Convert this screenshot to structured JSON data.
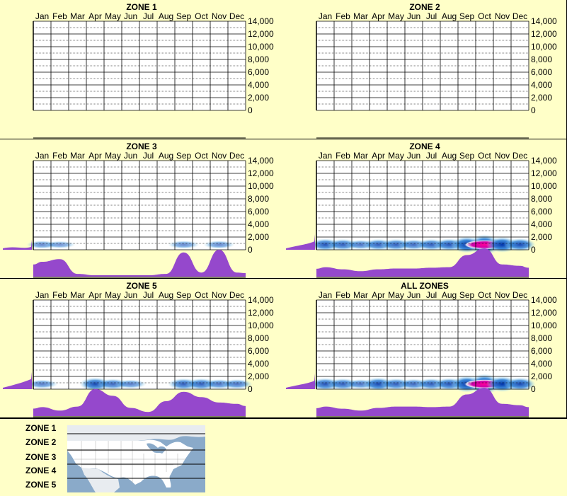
{
  "chart_data": [
    {
      "type": "heatmap",
      "title": "ZONE 1",
      "categories": [
        "Jan",
        "Feb",
        "Mar",
        "Apr",
        "May",
        "Jun",
        "Jul",
        "Aug",
        "Sep",
        "Oct",
        "Nov",
        "Dec"
      ],
      "yticks": [
        "14,000",
        "12,000",
        "10,000",
        "8,000",
        "6,000",
        "4,000",
        "2,000",
        "0"
      ],
      "ylim": [
        0,
        14000
      ],
      "hot": [],
      "monthly": [],
      "elev_lead": 0
    },
    {
      "type": "heatmap",
      "title": "ZONE 2",
      "categories": [
        "Jan",
        "Feb",
        "Mar",
        "Apr",
        "May",
        "Jun",
        "Jul",
        "Aug",
        "Sep",
        "Oct",
        "Nov",
        "Dec"
      ],
      "yticks": [
        "14,000",
        "12,000",
        "10,000",
        "8,000",
        "6,000",
        "4,000",
        "2,000",
        "0"
      ],
      "ylim": [
        0,
        14000
      ],
      "hot": [],
      "monthly": [],
      "elev_lead": 0
    },
    {
      "type": "heatmap",
      "title": "ZONE 3",
      "categories": [
        "Jan",
        "Feb",
        "Mar",
        "Apr",
        "May",
        "Jun",
        "Jul",
        "Aug",
        "Sep",
        "Oct",
        "Nov",
        "Dec"
      ],
      "yticks": [
        "14,000",
        "12,000",
        "10,000",
        "8,000",
        "6,000",
        "4,000",
        "2,000",
        "0"
      ],
      "ylim": [
        0,
        14000
      ],
      "hot": [
        {
          "m": 0.5,
          "i": 0.25
        },
        {
          "m": 1.5,
          "i": 0.2
        },
        {
          "m": 8.5,
          "i": 0.25
        },
        {
          "m": 10.5,
          "i": 0.25
        }
      ],
      "monthly": [
        0.5,
        0.6,
        0.05,
        0.0,
        0.0,
        0.0,
        0.0,
        0.05,
        0.85,
        0.1,
        0.95,
        0.1
      ],
      "elev_lead": 0.25
    },
    {
      "type": "heatmap",
      "title": "ZONE 4",
      "categories": [
        "Jan",
        "Feb",
        "Mar",
        "Apr",
        "May",
        "Jun",
        "Jul",
        "Aug",
        "Sep",
        "Oct",
        "Nov",
        "Dec"
      ],
      "yticks": [
        "14,000",
        "12,000",
        "10,000",
        "8,000",
        "6,000",
        "4,000",
        "2,000",
        "0"
      ],
      "ylim": [
        0,
        14000
      ],
      "hot": [
        {
          "m": 0.5,
          "i": 0.5
        },
        {
          "m": 1.5,
          "i": 0.45
        },
        {
          "m": 2.5,
          "i": 0.35
        },
        {
          "m": 3.5,
          "i": 0.45
        },
        {
          "m": 4.5,
          "i": 0.45
        },
        {
          "m": 5.5,
          "i": 0.4
        },
        {
          "m": 6.5,
          "i": 0.45
        },
        {
          "m": 7.5,
          "i": 0.5
        },
        {
          "m": 8.5,
          "i": 0.75
        },
        {
          "m": 9.5,
          "i": 1.0
        },
        {
          "m": 10.5,
          "i": 0.7
        },
        {
          "m": 11.5,
          "i": 0.55
        }
      ],
      "monthly": [
        0.3,
        0.22,
        0.15,
        0.22,
        0.25,
        0.25,
        0.28,
        0.3,
        0.75,
        1.0,
        0.4,
        0.35
      ],
      "elev_lead": 0.55
    },
    {
      "type": "heatmap",
      "title": "ZONE 5",
      "categories": [
        "Jan",
        "Feb",
        "Mar",
        "Apr",
        "May",
        "Jun",
        "Jul",
        "Aug",
        "Sep",
        "Oct",
        "Nov",
        "Dec"
      ],
      "yticks": [
        "14,000",
        "12,000",
        "10,000",
        "8,000",
        "6,000",
        "4,000",
        "2,000",
        "0"
      ],
      "ylim": [
        0,
        14000
      ],
      "hot": [
        {
          "m": 0.5,
          "i": 0.3
        },
        {
          "m": 3.5,
          "i": 0.55
        },
        {
          "m": 4.5,
          "i": 0.4
        },
        {
          "m": 5.5,
          "i": 0.3
        },
        {
          "m": 8.5,
          "i": 0.45
        },
        {
          "m": 9.5,
          "i": 0.45
        },
        {
          "m": 10.5,
          "i": 0.35
        },
        {
          "m": 11.5,
          "i": 0.35
        }
      ],
      "monthly": [
        0.28,
        0.15,
        0.3,
        0.95,
        0.7,
        0.25,
        0.1,
        0.5,
        0.85,
        0.65,
        0.45,
        0.4
      ],
      "elev_lead": 0.65
    },
    {
      "type": "heatmap",
      "title": "ALL ZONES",
      "categories": [
        "Jan",
        "Feb",
        "Mar",
        "Apr",
        "May",
        "Jun",
        "Jul",
        "Aug",
        "Sep",
        "Oct",
        "Nov",
        "Dec"
      ],
      "yticks": [
        "14,000",
        "12,000",
        "10,000",
        "8,000",
        "6,000",
        "4,000",
        "2,000",
        "0"
      ],
      "ylim": [
        0,
        14000
      ],
      "hot": [
        {
          "m": 0.5,
          "i": 0.5
        },
        {
          "m": 1.5,
          "i": 0.45
        },
        {
          "m": 2.5,
          "i": 0.35
        },
        {
          "m": 3.5,
          "i": 0.55
        },
        {
          "m": 4.5,
          "i": 0.45
        },
        {
          "m": 5.5,
          "i": 0.4
        },
        {
          "m": 6.5,
          "i": 0.45
        },
        {
          "m": 7.5,
          "i": 0.5
        },
        {
          "m": 8.5,
          "i": 0.75
        },
        {
          "m": 9.5,
          "i": 1.0
        },
        {
          "m": 10.5,
          "i": 0.7
        },
        {
          "m": 11.5,
          "i": 0.55
        }
      ],
      "monthly": [
        0.3,
        0.22,
        0.15,
        0.25,
        0.3,
        0.3,
        0.28,
        0.3,
        0.75,
        1.0,
        0.4,
        0.35
      ],
      "elev_lead": 0.55
    }
  ],
  "legend": {
    "zones": [
      "ZONE 1",
      "ZONE 2",
      "ZONE 3",
      "ZONE 4",
      "ZONE 5"
    ]
  },
  "colors": {
    "background": "#ffffc8",
    "histogram": "#9548cc",
    "heat_low": "#b8ecf4",
    "heat_mid": "#0033aa",
    "heat_high": "#ff0099",
    "map_water": "#8aaac9",
    "map_land": "#ffffff"
  }
}
